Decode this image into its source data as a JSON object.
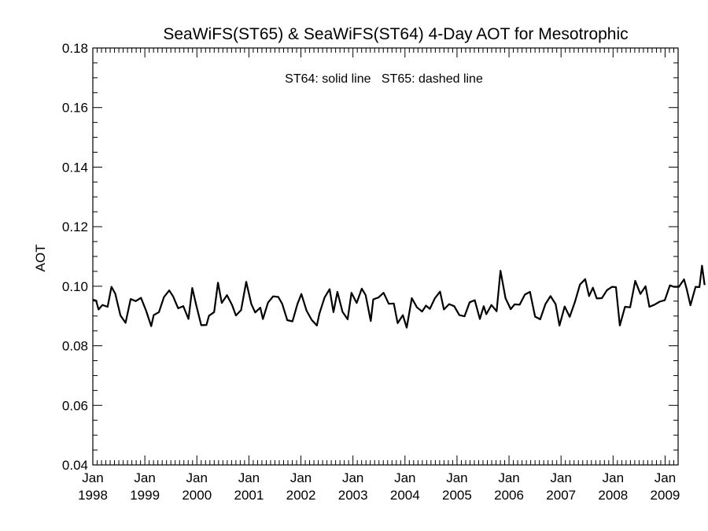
{
  "chart_data": {
    "type": "line",
    "title": "SeaWiFS(ST65) & SeaWiFS(ST64) 4-Day AOT for Mesotrophic",
    "annotation": "ST64: solid line   ST65: dashed line",
    "xlabel": "",
    "ylabel": "AOT",
    "xlim": [
      1998.0,
      2009.25
    ],
    "ylim": [
      0.04,
      0.18
    ],
    "y_ticks": [
      "0.04",
      "0.06",
      "0.08",
      "0.10",
      "0.12",
      "0.14",
      "0.16",
      "0.18"
    ],
    "x_tick_labels": [
      {
        "month": "Jan",
        "year": "1998"
      },
      {
        "month": "Jan",
        "year": "1999"
      },
      {
        "month": "Jan",
        "year": "2000"
      },
      {
        "month": "Jan",
        "year": "2001"
      },
      {
        "month": "Jan",
        "year": "2002"
      },
      {
        "month": "Jan",
        "year": "2003"
      },
      {
        "month": "Jan",
        "year": "2004"
      },
      {
        "month": "Jan",
        "year": "2005"
      },
      {
        "month": "Jan",
        "year": "2006"
      },
      {
        "month": "Jan",
        "year": "2007"
      },
      {
        "month": "Jan",
        "year": "2008"
      },
      {
        "month": "Jan",
        "year": "2009"
      }
    ],
    "grid": false,
    "series": [
      {
        "name": "ST64",
        "color": "#000000",
        "style": "solid",
        "points": [
          [
            1998.0,
            0.0955
          ],
          [
            1998.062,
            0.0952
          ],
          [
            1998.111,
            0.0922
          ],
          [
            1998.185,
            0.0937
          ],
          [
            1998.284,
            0.0931
          ],
          [
            1998.358,
            0.0998
          ],
          [
            1998.431,
            0.0975
          ],
          [
            1998.53,
            0.0902
          ],
          [
            1998.629,
            0.0877
          ],
          [
            1998.727,
            0.0957
          ],
          [
            1998.826,
            0.095
          ],
          [
            1998.925,
            0.0961
          ],
          [
            1999.023,
            0.0918
          ],
          [
            1999.122,
            0.0866
          ],
          [
            1999.171,
            0.0903
          ],
          [
            1999.27,
            0.0913
          ],
          [
            1999.369,
            0.0964
          ],
          [
            1999.468,
            0.0986
          ],
          [
            1999.542,
            0.0966
          ],
          [
            1999.64,
            0.0926
          ],
          [
            1999.739,
            0.0933
          ],
          [
            1999.838,
            0.089
          ],
          [
            1999.912,
            0.0994
          ],
          [
            1999.986,
            0.0938
          ],
          [
            2000.084,
            0.0869
          ],
          [
            2000.183,
            0.087
          ],
          [
            2000.233,
            0.0901
          ],
          [
            2000.331,
            0.0913
          ],
          [
            2000.405,
            0.1012
          ],
          [
            2000.479,
            0.0944
          ],
          [
            2000.578,
            0.097
          ],
          [
            2000.677,
            0.0937
          ],
          [
            2000.751,
            0.0902
          ],
          [
            2000.85,
            0.092
          ],
          [
            2000.948,
            0.1015
          ],
          [
            2001.047,
            0.094
          ],
          [
            2001.121,
            0.0912
          ],
          [
            2001.22,
            0.0928
          ],
          [
            2001.269,
            0.089
          ],
          [
            2001.368,
            0.0945
          ],
          [
            2001.466,
            0.0966
          ],
          [
            2001.565,
            0.0964
          ],
          [
            2001.639,
            0.0941
          ],
          [
            2001.738,
            0.0886
          ],
          [
            2001.837,
            0.0882
          ],
          [
            2001.935,
            0.0941
          ],
          [
            2002.009,
            0.0974
          ],
          [
            2002.108,
            0.0918
          ],
          [
            2002.207,
            0.0887
          ],
          [
            2002.306,
            0.0868
          ],
          [
            2002.355,
            0.0908
          ],
          [
            2002.454,
            0.0962
          ],
          [
            2002.552,
            0.099
          ],
          [
            2002.626,
            0.0913
          ],
          [
            2002.701,
            0.0981
          ],
          [
            2002.799,
            0.0914
          ],
          [
            2002.898,
            0.0889
          ],
          [
            2002.972,
            0.0978
          ],
          [
            2003.071,
            0.0944
          ],
          [
            2003.17,
            0.0992
          ],
          [
            2003.244,
            0.097
          ],
          [
            2003.342,
            0.0883
          ],
          [
            2003.391,
            0.0956
          ],
          [
            2003.49,
            0.0962
          ],
          [
            2003.589,
            0.0978
          ],
          [
            2003.688,
            0.0941
          ],
          [
            2003.786,
            0.0942
          ],
          [
            2003.86,
            0.0876
          ],
          [
            2003.959,
            0.0903
          ],
          [
            2004.033,
            0.0861
          ],
          [
            2004.132,
            0.096
          ],
          [
            2004.23,
            0.0929
          ],
          [
            2004.329,
            0.0915
          ],
          [
            2004.403,
            0.0935
          ],
          [
            2004.478,
            0.0924
          ],
          [
            2004.576,
            0.096
          ],
          [
            2004.675,
            0.0982
          ],
          [
            2004.749,
            0.0922
          ],
          [
            2004.848,
            0.094
          ],
          [
            2004.946,
            0.0933
          ],
          [
            2005.045,
            0.0903
          ],
          [
            2005.144,
            0.0899
          ],
          [
            2005.243,
            0.0946
          ],
          [
            2005.341,
            0.0953
          ],
          [
            2005.44,
            0.089
          ],
          [
            2005.514,
            0.0933
          ],
          [
            2005.563,
            0.0906
          ],
          [
            2005.662,
            0.0937
          ],
          [
            2005.761,
            0.0916
          ],
          [
            2005.835,
            0.1052
          ],
          [
            2005.933,
            0.096
          ],
          [
            2006.032,
            0.0923
          ],
          [
            2006.106,
            0.0939
          ],
          [
            2006.205,
            0.0938
          ],
          [
            2006.304,
            0.0972
          ],
          [
            2006.402,
            0.0981
          ],
          [
            2006.501,
            0.0898
          ],
          [
            2006.6,
            0.0889
          ],
          [
            2006.699,
            0.094
          ],
          [
            2006.797,
            0.0967
          ],
          [
            2006.896,
            0.094
          ],
          [
            2006.97,
            0.0868
          ],
          [
            2007.069,
            0.0932
          ],
          [
            2007.167,
            0.0897
          ],
          [
            2007.266,
            0.0947
          ],
          [
            2007.365,
            0.1006
          ],
          [
            2007.464,
            0.1024
          ],
          [
            2007.538,
            0.0967
          ],
          [
            2007.612,
            0.0995
          ],
          [
            2007.686,
            0.0959
          ],
          [
            2007.785,
            0.096
          ],
          [
            2007.883,
            0.0987
          ],
          [
            2007.982,
            0.0998
          ],
          [
            2008.056,
            0.0997
          ],
          [
            2008.13,
            0.0868
          ],
          [
            2008.229,
            0.0931
          ],
          [
            2008.328,
            0.0929
          ],
          [
            2008.426,
            0.1018
          ],
          [
            2008.525,
            0.0974
          ],
          [
            2008.624,
            0.1
          ],
          [
            2008.698,
            0.0931
          ],
          [
            2008.796,
            0.0938
          ],
          [
            2008.895,
            0.0948
          ],
          [
            2008.994,
            0.0953
          ],
          [
            2009.092,
            0.1003
          ],
          [
            2009.167,
            0.0998
          ],
          [
            2009.265,
            0.0998
          ],
          [
            2009.364,
            0.1023
          ],
          [
            2009.413,
            0.0992
          ],
          [
            2009.487,
            0.0936
          ],
          [
            2009.586,
            0.0998
          ],
          [
            2009.66,
            0.0997
          ],
          [
            2009.71,
            0.1069
          ],
          [
            2009.759,
            0.1004
          ]
        ]
      }
    ]
  }
}
